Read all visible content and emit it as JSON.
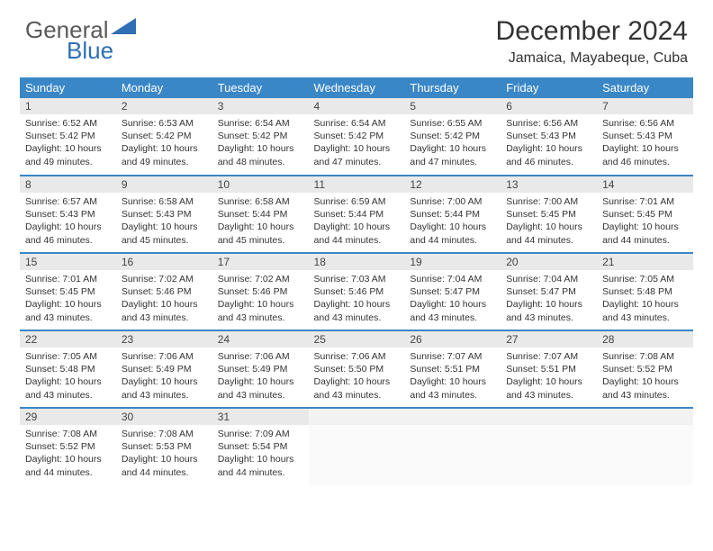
{
  "logo": {
    "text1": "General",
    "text2": "Blue"
  },
  "title": "December 2024",
  "location": "Jamaica, Mayabeque, Cuba",
  "colors": {
    "header_bg": "#3a87c7",
    "header_text": "#ffffff",
    "daynum_bg": "#e9e9e9",
    "border": "#3a87c7",
    "logo_gray": "#5a5a5a",
    "logo_blue": "#2f6fb5"
  },
  "weekdays": [
    "Sunday",
    "Monday",
    "Tuesday",
    "Wednesday",
    "Thursday",
    "Friday",
    "Saturday"
  ],
  "weeks": [
    [
      {
        "d": "1",
        "sr": "6:52 AM",
        "ss": "5:42 PM",
        "dl": "10 hours and 49 minutes."
      },
      {
        "d": "2",
        "sr": "6:53 AM",
        "ss": "5:42 PM",
        "dl": "10 hours and 49 minutes."
      },
      {
        "d": "3",
        "sr": "6:54 AM",
        "ss": "5:42 PM",
        "dl": "10 hours and 48 minutes."
      },
      {
        "d": "4",
        "sr": "6:54 AM",
        "ss": "5:42 PM",
        "dl": "10 hours and 47 minutes."
      },
      {
        "d": "5",
        "sr": "6:55 AM",
        "ss": "5:42 PM",
        "dl": "10 hours and 47 minutes."
      },
      {
        "d": "6",
        "sr": "6:56 AM",
        "ss": "5:43 PM",
        "dl": "10 hours and 46 minutes."
      },
      {
        "d": "7",
        "sr": "6:56 AM",
        "ss": "5:43 PM",
        "dl": "10 hours and 46 minutes."
      }
    ],
    [
      {
        "d": "8",
        "sr": "6:57 AM",
        "ss": "5:43 PM",
        "dl": "10 hours and 46 minutes."
      },
      {
        "d": "9",
        "sr": "6:58 AM",
        "ss": "5:43 PM",
        "dl": "10 hours and 45 minutes."
      },
      {
        "d": "10",
        "sr": "6:58 AM",
        "ss": "5:44 PM",
        "dl": "10 hours and 45 minutes."
      },
      {
        "d": "11",
        "sr": "6:59 AM",
        "ss": "5:44 PM",
        "dl": "10 hours and 44 minutes."
      },
      {
        "d": "12",
        "sr": "7:00 AM",
        "ss": "5:44 PM",
        "dl": "10 hours and 44 minutes."
      },
      {
        "d": "13",
        "sr": "7:00 AM",
        "ss": "5:45 PM",
        "dl": "10 hours and 44 minutes."
      },
      {
        "d": "14",
        "sr": "7:01 AM",
        "ss": "5:45 PM",
        "dl": "10 hours and 44 minutes."
      }
    ],
    [
      {
        "d": "15",
        "sr": "7:01 AM",
        "ss": "5:45 PM",
        "dl": "10 hours and 43 minutes."
      },
      {
        "d": "16",
        "sr": "7:02 AM",
        "ss": "5:46 PM",
        "dl": "10 hours and 43 minutes."
      },
      {
        "d": "17",
        "sr": "7:02 AM",
        "ss": "5:46 PM",
        "dl": "10 hours and 43 minutes."
      },
      {
        "d": "18",
        "sr": "7:03 AM",
        "ss": "5:46 PM",
        "dl": "10 hours and 43 minutes."
      },
      {
        "d": "19",
        "sr": "7:04 AM",
        "ss": "5:47 PM",
        "dl": "10 hours and 43 minutes."
      },
      {
        "d": "20",
        "sr": "7:04 AM",
        "ss": "5:47 PM",
        "dl": "10 hours and 43 minutes."
      },
      {
        "d": "21",
        "sr": "7:05 AM",
        "ss": "5:48 PM",
        "dl": "10 hours and 43 minutes."
      }
    ],
    [
      {
        "d": "22",
        "sr": "7:05 AM",
        "ss": "5:48 PM",
        "dl": "10 hours and 43 minutes."
      },
      {
        "d": "23",
        "sr": "7:06 AM",
        "ss": "5:49 PM",
        "dl": "10 hours and 43 minutes."
      },
      {
        "d": "24",
        "sr": "7:06 AM",
        "ss": "5:49 PM",
        "dl": "10 hours and 43 minutes."
      },
      {
        "d": "25",
        "sr": "7:06 AM",
        "ss": "5:50 PM",
        "dl": "10 hours and 43 minutes."
      },
      {
        "d": "26",
        "sr": "7:07 AM",
        "ss": "5:51 PM",
        "dl": "10 hours and 43 minutes."
      },
      {
        "d": "27",
        "sr": "7:07 AM",
        "ss": "5:51 PM",
        "dl": "10 hours and 43 minutes."
      },
      {
        "d": "28",
        "sr": "7:08 AM",
        "ss": "5:52 PM",
        "dl": "10 hours and 43 minutes."
      }
    ],
    [
      {
        "d": "29",
        "sr": "7:08 AM",
        "ss": "5:52 PM",
        "dl": "10 hours and 44 minutes."
      },
      {
        "d": "30",
        "sr": "7:08 AM",
        "ss": "5:53 PM",
        "dl": "10 hours and 44 minutes."
      },
      {
        "d": "31",
        "sr": "7:09 AM",
        "ss": "5:54 PM",
        "dl": "10 hours and 44 minutes."
      },
      {
        "empty": true
      },
      {
        "empty": true
      },
      {
        "empty": true
      },
      {
        "empty": true
      }
    ]
  ],
  "labels": {
    "sunrise": "Sunrise:",
    "sunset": "Sunset:",
    "daylight": "Daylight:"
  }
}
